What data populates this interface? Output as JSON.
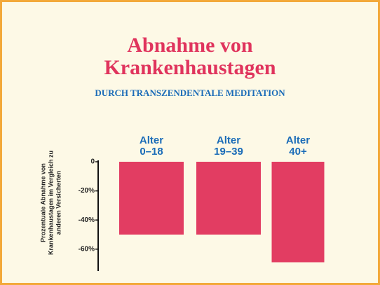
{
  "chart_data": {
    "type": "bar",
    "title": "Abnahme von\nKrankenhaustagen",
    "subtitle": "DURCH TRANSZENDENTALE MEDITATION",
    "y_label": "Prozentuale Abnahme von\nKrankenhaustagen im Vergleich zu\nanderen Versicherten",
    "categories": [
      "Alter\n0–18",
      "Alter\n19–39",
      "Alter\n40+"
    ],
    "values": [
      -50,
      -50,
      -69
    ],
    "color": "#e23d62",
    "ylim": [
      -75,
      0
    ],
    "yticks": [
      0,
      {
        "value": -20,
        "label": "-20%"
      },
      {
        "value": -40,
        "label": "-40%"
      },
      {
        "value": -60,
        "label": "-60%"
      }
    ]
  }
}
